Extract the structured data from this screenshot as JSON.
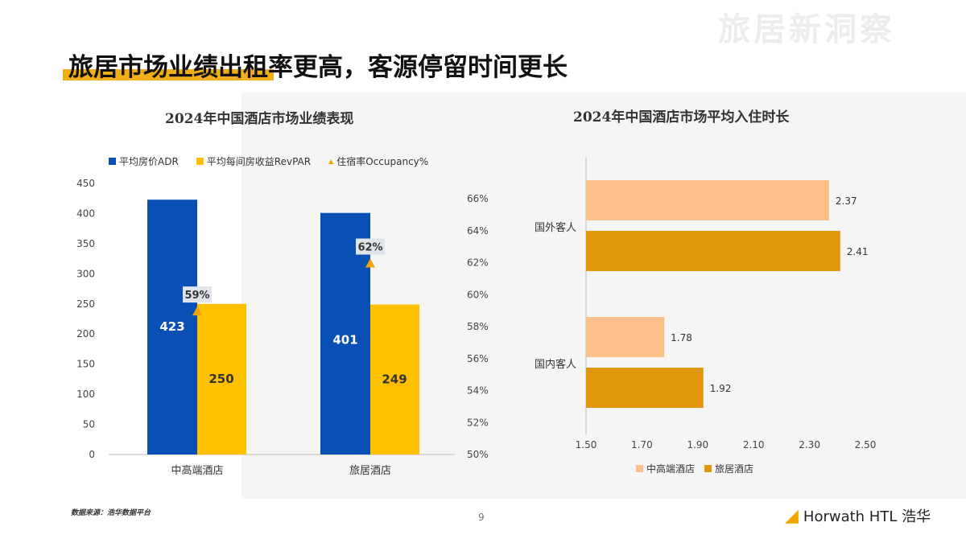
{
  "header": {
    "title": "旅居市场业绩出租率更高，客源停留时间更长",
    "watermark": "旅居新洞察"
  },
  "footer": {
    "source": "数据来源：浩华数据平台",
    "page": "9",
    "logo": "Horwath HTL 浩华"
  },
  "colors": {
    "adr": "#0a50b4",
    "revpar": "#ffc000",
    "occ": "#f0a500",
    "domestic_light": "#fbc08a",
    "resort_dark": "#e0960a",
    "accent": "#f0a500"
  },
  "chart_data": [
    {
      "type": "bar",
      "title": "2024年中国酒店市场业绩表现",
      "categories": [
        "中高端酒店",
        "旅居酒店"
      ],
      "series": [
        {
          "name": "平均房价ADR",
          "values": [
            423,
            401
          ],
          "axis": "left"
        },
        {
          "name": "平均每间房收益RevPAR",
          "values": [
            250,
            249
          ],
          "axis": "left"
        },
        {
          "name": "住宿率Occupancy%",
          "type": "marker",
          "values": [
            59,
            62
          ],
          "labels": [
            "59%",
            "62%"
          ],
          "axis": "right"
        }
      ],
      "ylim": [
        0,
        450
      ],
      "yticks": [
        "0",
        "50",
        "100",
        "150",
        "200",
        "250",
        "300",
        "350",
        "400",
        "450"
      ],
      "y2lim": [
        50,
        66
      ],
      "y2ticks": [
        "50%",
        "52%",
        "54%",
        "56%",
        "58%",
        "60%",
        "62%",
        "64%",
        "66%"
      ],
      "legend": "top",
      "grid": false
    },
    {
      "type": "bar",
      "orientation": "horizontal",
      "title": "2024年中国酒店市场平均入住时长",
      "categories": [
        "国外客人",
        "国内客人"
      ],
      "series": [
        {
          "name": "中高端酒店",
          "values": [
            2.37,
            1.78
          ],
          "labels": [
            "2.37",
            "1.78"
          ]
        },
        {
          "name": "旅居酒店",
          "values": [
            2.41,
            1.92
          ],
          "labels": [
            "2.41",
            "1.92"
          ]
        }
      ],
      "xlim": [
        1.5,
        2.5
      ],
      "xticks": [
        "1.50",
        "1.70",
        "1.90",
        "2.10",
        "2.30",
        "2.50"
      ],
      "legend": "bottom",
      "grid": false
    }
  ]
}
